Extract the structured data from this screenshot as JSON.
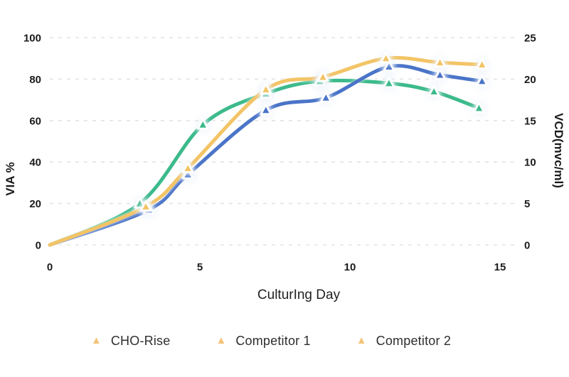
{
  "chart_data": {
    "type": "line",
    "title": "",
    "xlabel": "CulturIng Day",
    "ylabel_left": "VIA %",
    "ylabel_right": "VCD(mvc/ml)",
    "x_ticks": [
      0,
      5,
      10,
      15
    ],
    "y_ticks_left": [
      0,
      20,
      40,
      60,
      80,
      100
    ],
    "y_ticks_right": [
      0,
      5,
      10,
      15,
      20,
      25
    ],
    "xlim": [
      0,
      15.6
    ],
    "ylim_left": [
      0,
      100
    ],
    "ylim_right": [
      0,
      25
    ],
    "grid": "horizontal-dashed",
    "legend_position": "bottom",
    "legend_marker": "triangle-up",
    "legend_marker_color": "#F4C479",
    "curve_style": "smoothed",
    "marker_style": "triangle-up-white-outline",
    "series": [
      {
        "name": "CHO-Rise",
        "color": "#F3C466",
        "x": [
          0,
          3.2,
          4.6,
          7.2,
          9.1,
          11.2,
          13.0,
          14.4
        ],
        "values_via_pct": [
          0,
          18.5,
          37,
          75,
          81,
          90,
          88,
          87
        ],
        "values_vcd": [
          0,
          4.6,
          9.3,
          18.8,
          20.3,
          22.5,
          22.0,
          21.8
        ]
      },
      {
        "name": "Competitor 1",
        "color": "#4A74C8",
        "x": [
          0,
          3.3,
          4.6,
          7.2,
          9.2,
          11.3,
          13.0,
          14.4
        ],
        "values_via_pct": [
          0,
          17,
          34,
          65,
          71,
          86,
          82,
          79
        ],
        "values_vcd": [
          0,
          4.3,
          8.5,
          16.3,
          17.8,
          21.5,
          20.5,
          19.8
        ]
      },
      {
        "name": "Competitor 2",
        "color": "#3CBA8B",
        "x": [
          0,
          3.0,
          5.1,
          7.2,
          9.0,
          11.3,
          12.8,
          14.3
        ],
        "values_via_pct": [
          0,
          20,
          58,
          73,
          79,
          78,
          74,
          66
        ],
        "values_vcd": [
          0,
          5.0,
          14.5,
          18.3,
          19.8,
          19.5,
          18.5,
          16.5
        ]
      }
    ]
  }
}
